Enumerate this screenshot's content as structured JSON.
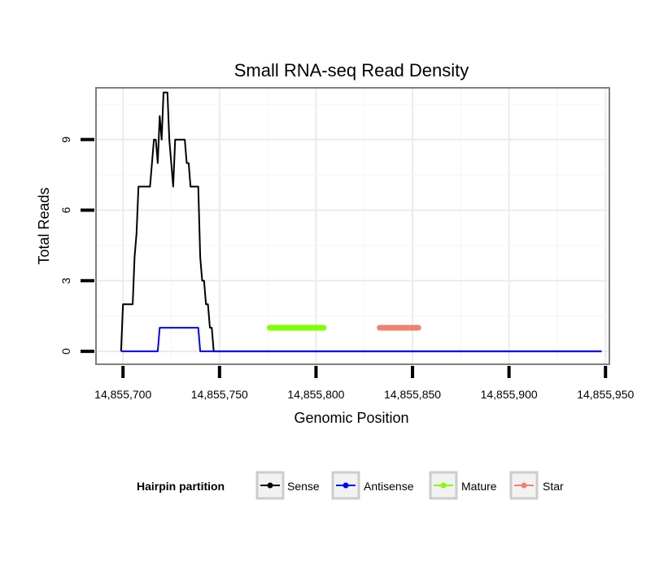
{
  "chart_data": {
    "type": "line",
    "title": "Small RNA-seq Read Density",
    "xlabel": "Genomic Position",
    "ylabel": "Total Reads",
    "xlim": [
      14855686,
      14855952
    ],
    "ylim": [
      -0.55,
      11.2
    ],
    "x_ticks": [
      14855700,
      14855750,
      14855800,
      14855850,
      14855900,
      14855950
    ],
    "x_tick_labels": [
      "14,855,700",
      "14,855,750",
      "14,855,800",
      "14,855,850",
      "14,855,900",
      "14,855,950"
    ],
    "y_ticks": [
      0,
      3,
      6,
      9
    ],
    "y_tick_labels": [
      "0",
      "3",
      "6",
      "9"
    ],
    "grid": true,
    "legend_position": "bottom",
    "legend_title": "Hairpin partition",
    "series": [
      {
        "name": "Sense",
        "color": "#000000",
        "points": [
          [
            14855699,
            0
          ],
          [
            14855700,
            2
          ],
          [
            14855705,
            2
          ],
          [
            14855706,
            4
          ],
          [
            14855707,
            5
          ],
          [
            14855708,
            7
          ],
          [
            14855709,
            7
          ],
          [
            14855714,
            7
          ],
          [
            14855716,
            9
          ],
          [
            14855717,
            9
          ],
          [
            14855718,
            8
          ],
          [
            14855719,
            10
          ],
          [
            14855720,
            9
          ],
          [
            14855721,
            11
          ],
          [
            14855723,
            11
          ],
          [
            14855724,
            9
          ],
          [
            14855725,
            8
          ],
          [
            14855726,
            7
          ],
          [
            14855727,
            9
          ],
          [
            14855732,
            9
          ],
          [
            14855733,
            8
          ],
          [
            14855734,
            8
          ],
          [
            14855735,
            7
          ],
          [
            14855739,
            7
          ],
          [
            14855740,
            4
          ],
          [
            14855741,
            3
          ],
          [
            14855742,
            3
          ],
          [
            14855743,
            2
          ],
          [
            14855744,
            2
          ],
          [
            14855745,
            1
          ],
          [
            14855746,
            1
          ],
          [
            14855747,
            0
          ],
          [
            14855948,
            0
          ]
        ]
      },
      {
        "name": "Antisense",
        "color": "#0000ff",
        "points": [
          [
            14855699,
            0
          ],
          [
            14855718,
            0
          ],
          [
            14855719,
            1
          ],
          [
            14855739,
            1
          ],
          [
            14855740,
            0
          ],
          [
            14855948,
            0
          ]
        ]
      },
      {
        "name": "Mature",
        "color": "#7fff00",
        "points": [
          [
            14855776,
            1
          ],
          [
            14855804,
            1
          ]
        ]
      },
      {
        "name": "Star",
        "color": "#f08070",
        "points": [
          [
            14855833,
            1
          ],
          [
            14855853,
            1
          ]
        ]
      }
    ]
  }
}
